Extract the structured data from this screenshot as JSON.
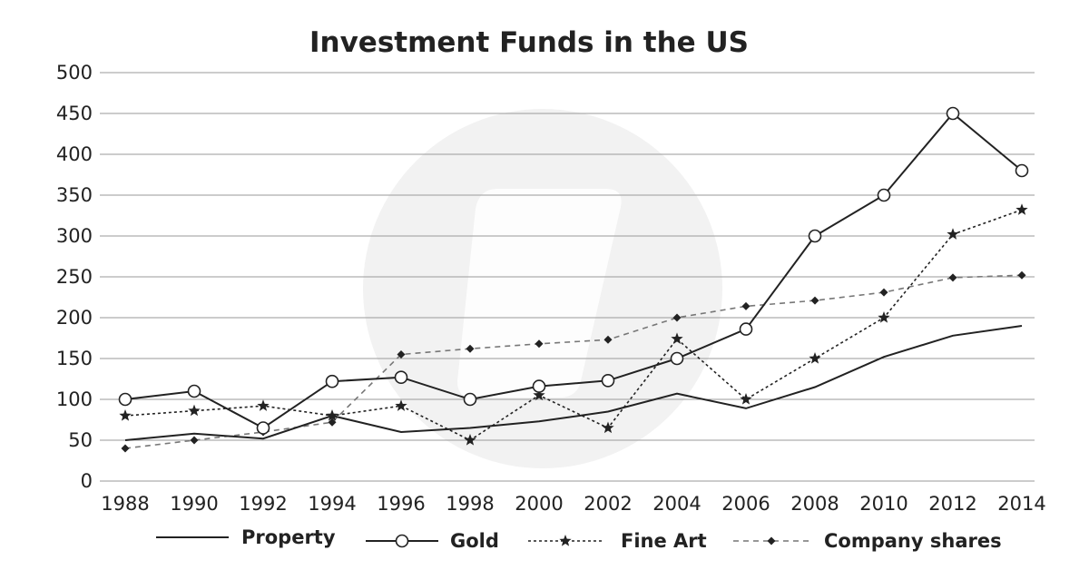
{
  "chart_data": {
    "type": "line",
    "title": "Investment Funds in the US",
    "xlabel": "",
    "ylabel": "",
    "x": [
      "1988",
      "1990",
      "1992",
      "1994",
      "1996",
      "1998",
      "2000",
      "2002",
      "2004",
      "2006",
      "2008",
      "2010",
      "2012",
      "2014"
    ],
    "ylim": [
      0,
      500
    ],
    "yticks": [
      "0",
      "50",
      "100",
      "150",
      "200",
      "250",
      "300",
      "350",
      "400",
      "450",
      "500"
    ],
    "grid": "horizontal",
    "legend_position": "bottom",
    "series": [
      {
        "name": "Property",
        "style": "solid",
        "marker": "none",
        "color": "#222222",
        "values": [
          50,
          58,
          52,
          80,
          60,
          65,
          73,
          85,
          107,
          89,
          115,
          152,
          178,
          190
        ]
      },
      {
        "name": "Gold",
        "style": "solid",
        "marker": "circle",
        "color": "#222222",
        "values": [
          100,
          110,
          65,
          122,
          127,
          100,
          116,
          123,
          150,
          186,
          300,
          350,
          450,
          380
        ]
      },
      {
        "name": "Fine Art",
        "style": "dotted",
        "marker": "star",
        "color": "#222222",
        "values": [
          80,
          86,
          92,
          80,
          92,
          50,
          105,
          65,
          174,
          100,
          150,
          200,
          302,
          332
        ]
      },
      {
        "name": "Company shares",
        "style": "dashed",
        "marker": "diamond",
        "color": "#777777",
        "values": [
          40,
          50,
          60,
          72,
          155,
          162,
          168,
          173,
          200,
          214,
          221,
          231,
          249,
          252
        ]
      }
    ]
  },
  "colors": {
    "text": "#222222",
    "grid": "#999999",
    "watermark": "#f2f2f2"
  },
  "watermark_icon": "logo-watermark-icon"
}
